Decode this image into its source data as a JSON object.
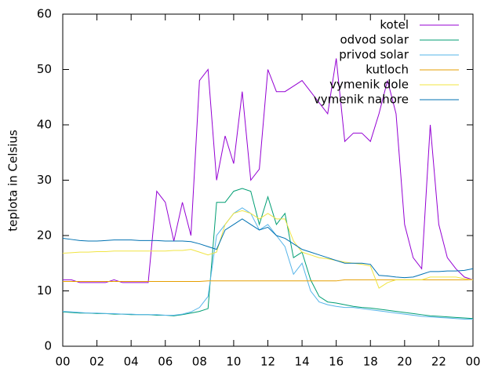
{
  "chart_data": {
    "type": "line",
    "y_label": "teplota in Celsius",
    "x": [
      0,
      0.5,
      1,
      1.5,
      2,
      2.5,
      3,
      3.5,
      4,
      4.5,
      5,
      5.5,
      6,
      6.5,
      7,
      7.5,
      8,
      8.5,
      9,
      9.5,
      10,
      10.5,
      11,
      11.5,
      12,
      12.5,
      13,
      13.5,
      14,
      14.5,
      15,
      15.5,
      16,
      16.5,
      17,
      17.5,
      18,
      18.5,
      19,
      19.5,
      20,
      20.5,
      21,
      21.5,
      22,
      22.5,
      23,
      23.5,
      24
    ],
    "series": [
      {
        "name": "kotel",
        "color": "#9400d3",
        "values": [
          12,
          12,
          11.5,
          11.5,
          11.5,
          11.5,
          12,
          11.5,
          11.5,
          11.5,
          11.5,
          28,
          26,
          19,
          26,
          20,
          48,
          50,
          30,
          38,
          33,
          46,
          30,
          32,
          50,
          46,
          46,
          47,
          48,
          46,
          44,
          42,
          52,
          37,
          38.5,
          38.5,
          37,
          42,
          48,
          42,
          22,
          16,
          14,
          40,
          22,
          16,
          14,
          12.5,
          12
        ]
      },
      {
        "name": "odvod solar",
        "color": "#009e73",
        "values": [
          6.2,
          6.1,
          6.0,
          6.0,
          5.9,
          5.9,
          5.8,
          5.8,
          5.7,
          5.7,
          5.7,
          5.6,
          5.6,
          5.5,
          5.7,
          6.0,
          6.3,
          6.8,
          26,
          26,
          28,
          28.5,
          28,
          22,
          27,
          22,
          24,
          16,
          17,
          12,
          9,
          8,
          7.8,
          7.5,
          7.2,
          7,
          6.9,
          6.7,
          6.5,
          6.3,
          6.1,
          5.9,
          5.7,
          5.5,
          5.4,
          5.3,
          5.2,
          5.1,
          5.0
        ]
      },
      {
        "name": "privod solar",
        "color": "#56b4e9",
        "values": [
          6.3,
          6.2,
          6.1,
          6.0,
          6.0,
          5.9,
          5.9,
          5.8,
          5.8,
          5.7,
          5.7,
          5.7,
          5.6,
          5.6,
          5.8,
          6.2,
          7,
          9,
          20,
          22,
          24,
          25,
          24,
          21,
          22,
          20,
          18,
          13,
          15,
          10,
          8,
          7.5,
          7.2,
          7,
          7,
          6.8,
          6.6,
          6.4,
          6.2,
          6,
          5.8,
          5.6,
          5.4,
          5.3,
          5.2,
          5.1,
          5,
          4.9,
          4.9
        ]
      },
      {
        "name": "kutloch",
        "color": "#e69f00",
        "values": [
          11.7,
          11.7,
          11.7,
          11.7,
          11.7,
          11.7,
          11.7,
          11.7,
          11.7,
          11.7,
          11.7,
          11.7,
          11.7,
          11.7,
          11.7,
          11.7,
          11.7,
          11.8,
          11.8,
          11.8,
          11.8,
          11.8,
          11.8,
          11.8,
          11.8,
          11.8,
          11.8,
          11.8,
          11.8,
          11.8,
          11.8,
          11.8,
          11.8,
          12,
          12,
          12,
          12,
          12,
          12,
          12,
          12,
          12,
          12,
          12,
          12,
          12,
          12,
          12,
          12
        ]
      },
      {
        "name": "vymenik dole",
        "color": "#f0e442",
        "values": [
          16.8,
          16.9,
          17,
          17,
          17.1,
          17.1,
          17.2,
          17.2,
          17.2,
          17.2,
          17.2,
          17.2,
          17.2,
          17.3,
          17.3,
          17.5,
          17,
          16.5,
          17,
          22,
          24,
          24.5,
          24,
          23,
          24,
          23,
          23,
          19,
          17,
          16.5,
          16,
          15.8,
          15.5,
          15.2,
          15,
          14.8,
          14.5,
          10.5,
          11.5,
          12,
          12,
          12,
          12,
          12.5,
          12.5,
          12.5,
          12.5,
          12.2,
          12
        ]
      },
      {
        "name": "vymenik nahore",
        "color": "#0072b2",
        "values": [
          19.5,
          19.3,
          19.1,
          19,
          19,
          19.1,
          19.2,
          19.2,
          19.2,
          19.1,
          19.1,
          19.1,
          19,
          19,
          19,
          18.9,
          18.5,
          18,
          17.5,
          21,
          22,
          23,
          22,
          21,
          21.5,
          20,
          19.5,
          18.5,
          17.5,
          17,
          16.5,
          16,
          15.5,
          15,
          15,
          15,
          14.8,
          12.8,
          12.7,
          12.5,
          12.4,
          12.5,
          13,
          13.5,
          13.5,
          13.6,
          13.6,
          13.7,
          14
        ]
      }
    ],
    "xlim": [
      0,
      24
    ],
    "xticks": [
      {
        "value": 0,
        "label": "00"
      },
      {
        "value": 2,
        "label": "02"
      },
      {
        "value": 4,
        "label": "04"
      },
      {
        "value": 6,
        "label": "06"
      },
      {
        "value": 8,
        "label": "08"
      },
      10,
      12,
      14,
      16,
      18,
      20,
      22,
      {
        "value": 24,
        "label": "00"
      }
    ],
    "ylim": [
      0,
      60
    ],
    "yticks": [
      0,
      10,
      20,
      30,
      40,
      50,
      60
    ],
    "legend": "top right"
  }
}
